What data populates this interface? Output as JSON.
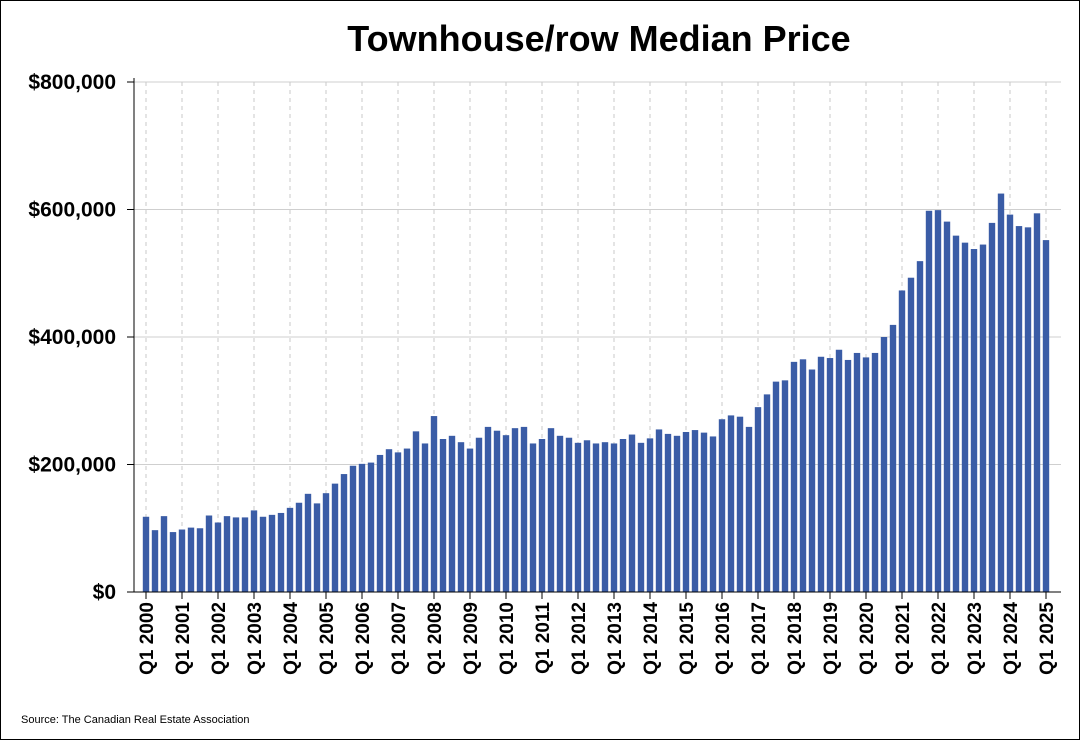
{
  "chart_data": {
    "type": "bar",
    "title": "Townhouse/row Median Price",
    "source": "Source: The Canadian Real Estate Association",
    "ylim": [
      0,
      800000
    ],
    "yticks": [
      0,
      200000,
      400000,
      600000,
      800000
    ],
    "ytick_labels": [
      "$0",
      "$200,000",
      "$400,000",
      "$600,000",
      "$800,000"
    ],
    "xtick_labels": [
      "Q1 2000",
      "Q1 2001",
      "Q1 2002",
      "Q1 2003",
      "Q1 2004",
      "Q1 2005",
      "Q1 2006",
      "Q1 2007",
      "Q1 2008",
      "Q1 2009",
      "Q1 2010",
      "Q1 2011",
      "Q1 2012",
      "Q1 2013",
      "Q1 2014",
      "Q1 2015",
      "Q1 2016",
      "Q1 2017",
      "Q1 2018",
      "Q1 2019",
      "Q1 2020",
      "Q1 2021",
      "Q1 2022",
      "Q1 2023",
      "Q1 2024",
      "Q1 2025"
    ],
    "grid": {
      "horizontal": true,
      "vertical_dashed": true
    },
    "bar_color": "#3a5ca6",
    "categories": [
      "Q1 2000",
      "Q2 2000",
      "Q3 2000",
      "Q4 2000",
      "Q1 2001",
      "Q2 2001",
      "Q3 2001",
      "Q4 2001",
      "Q1 2002",
      "Q2 2002",
      "Q3 2002",
      "Q4 2002",
      "Q1 2003",
      "Q2 2003",
      "Q3 2003",
      "Q4 2003",
      "Q1 2004",
      "Q2 2004",
      "Q3 2004",
      "Q4 2004",
      "Q1 2005",
      "Q2 2005",
      "Q3 2005",
      "Q4 2005",
      "Q1 2006",
      "Q2 2006",
      "Q3 2006",
      "Q4 2006",
      "Q1 2007",
      "Q2 2007",
      "Q3 2007",
      "Q4 2007",
      "Q1 2008",
      "Q2 2008",
      "Q3 2008",
      "Q4 2008",
      "Q1 2009",
      "Q2 2009",
      "Q3 2009",
      "Q4 2009",
      "Q1 2010",
      "Q2 2010",
      "Q3 2010",
      "Q4 2010",
      "Q1 2011",
      "Q2 2011",
      "Q3 2011",
      "Q4 2011",
      "Q1 2012",
      "Q2 2012",
      "Q3 2012",
      "Q4 2012",
      "Q1 2013",
      "Q2 2013",
      "Q3 2013",
      "Q4 2013",
      "Q1 2014",
      "Q2 2014",
      "Q3 2014",
      "Q4 2014",
      "Q1 2015",
      "Q2 2015",
      "Q3 2015",
      "Q4 2015",
      "Q1 2016",
      "Q2 2016",
      "Q3 2016",
      "Q4 2016",
      "Q1 2017",
      "Q2 2017",
      "Q3 2017",
      "Q4 2017",
      "Q1 2018",
      "Q2 2018",
      "Q3 2018",
      "Q4 2018",
      "Q1 2019",
      "Q2 2019",
      "Q3 2019",
      "Q4 2019",
      "Q1 2020",
      "Q2 2020",
      "Q3 2020",
      "Q4 2020",
      "Q1 2021",
      "Q2 2021",
      "Q3 2021",
      "Q4 2021",
      "Q1 2022",
      "Q2 2022",
      "Q3 2022",
      "Q4 2022",
      "Q1 2023",
      "Q2 2023",
      "Q3 2023",
      "Q4 2023",
      "Q1 2024",
      "Q2 2024",
      "Q3 2024",
      "Q4 2024",
      "Q1 2025"
    ],
    "values": [
      118000,
      97000,
      119000,
      94000,
      98000,
      101000,
      100000,
      120000,
      109000,
      119000,
      117000,
      117000,
      128000,
      118000,
      121000,
      124000,
      132000,
      140000,
      154000,
      139000,
      155000,
      170000,
      185000,
      198000,
      201000,
      203000,
      215000,
      224000,
      219000,
      225000,
      252000,
      233000,
      276000,
      240000,
      245000,
      235000,
      225000,
      242000,
      259000,
      253000,
      246000,
      257000,
      259000,
      233000,
      240000,
      257000,
      245000,
      242000,
      234000,
      238000,
      233000,
      235000,
      233000,
      240000,
      247000,
      234000,
      241000,
      255000,
      248000,
      245000,
      251000,
      254000,
      250000,
      244000,
      271000,
      277000,
      275000,
      259000,
      290000,
      310000,
      330000,
      332000,
      361000,
      365000,
      349000,
      369000,
      367000,
      380000,
      364000,
      375000,
      368000,
      375000,
      400000,
      419000,
      473000,
      493000,
      519000,
      598000,
      599000,
      581000,
      559000,
      548000,
      538000,
      545000,
      579000,
      625000,
      592000,
      574000,
      572000,
      594000,
      552000
    ]
  }
}
